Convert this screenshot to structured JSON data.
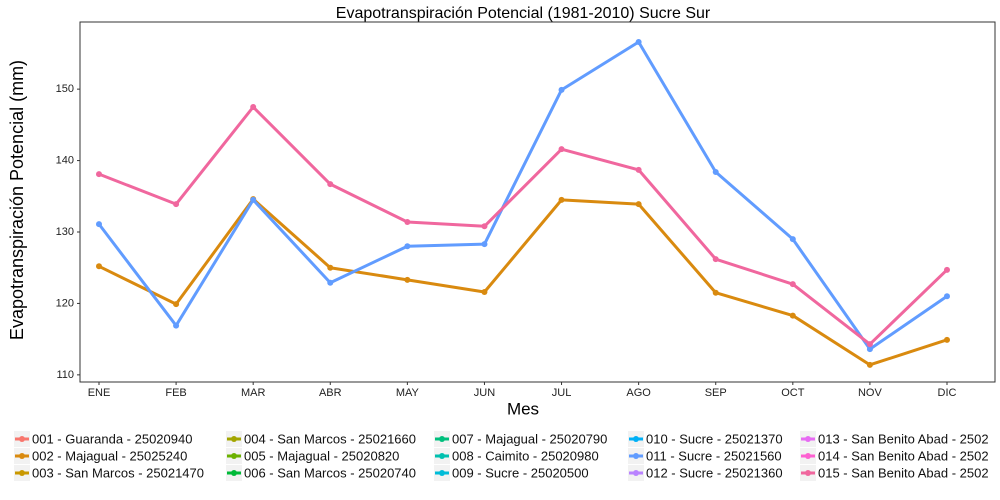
{
  "chart_data": {
    "type": "line",
    "title": "Evapotranspiración Potencial (1981-2010)  Sucre Sur",
    "x_label": "Mes",
    "y_label": "Evapotranspiración Potencial  (mm)",
    "categories": [
      "ENE",
      "FEB",
      "MAR",
      "ABR",
      "MAY",
      "JUN",
      "JUL",
      "AGO",
      "SEP",
      "OCT",
      "NOV",
      "DIC"
    ],
    "ylim": [
      109.0,
      159.4
    ],
    "yticks": [
      110,
      120,
      130,
      140,
      150
    ],
    "grid": false,
    "legend": "bottom",
    "series": [
      {
        "name": "001 - Guaranda - 25020940",
        "color": "#F8766D",
        "values": [
          null,
          null,
          null,
          null,
          null,
          null,
          null,
          null,
          null,
          null,
          null,
          null
        ]
      },
      {
        "name": "002 - Majagual - 25025240",
        "color": "#D98A0F",
        "values": [
          125.2,
          119.9,
          134.6,
          125.0,
          123.3,
          121.6,
          134.5,
          133.9,
          121.5,
          118.3,
          111.4,
          114.9
        ]
      },
      {
        "name": "003 - San Marcos - 25021470",
        "color": "#C99800",
        "values": [
          null,
          null,
          null,
          null,
          null,
          null,
          null,
          null,
          null,
          null,
          null,
          null
        ]
      },
      {
        "name": "004 - San Marcos - 25021660",
        "color": "#A3A500",
        "values": [
          null,
          null,
          null,
          null,
          null,
          null,
          null,
          null,
          null,
          null,
          null,
          null
        ]
      },
      {
        "name": "005 - Majagual - 25020820",
        "color": "#6BB100",
        "values": [
          null,
          null,
          null,
          null,
          null,
          null,
          null,
          null,
          null,
          null,
          null,
          null
        ]
      },
      {
        "name": "006 - San Marcos - 25020740",
        "color": "#00BA38",
        "values": [
          null,
          null,
          null,
          null,
          null,
          null,
          null,
          null,
          null,
          null,
          null,
          null
        ]
      },
      {
        "name": "007 - Majagual - 25020790",
        "color": "#00BF7D",
        "values": [
          null,
          null,
          null,
          null,
          null,
          null,
          null,
          null,
          null,
          null,
          null,
          null
        ]
      },
      {
        "name": "008 - Caimito - 25020980",
        "color": "#00C0AF",
        "values": [
          null,
          null,
          null,
          null,
          null,
          null,
          null,
          null,
          null,
          null,
          null,
          null
        ]
      },
      {
        "name": "009 - Sucre - 25020500",
        "color": "#00BCD8",
        "values": [
          null,
          null,
          null,
          null,
          null,
          null,
          null,
          null,
          null,
          null,
          null,
          null
        ]
      },
      {
        "name": "010 - Sucre - 25021370",
        "color": "#00B0F6",
        "values": [
          null,
          null,
          null,
          null,
          null,
          null,
          null,
          null,
          null,
          null,
          null,
          null
        ]
      },
      {
        "name": "011 - Sucre - 25021560",
        "color": "#619CFF",
        "values": [
          131.1,
          116.9,
          134.5,
          122.9,
          128.0,
          128.3,
          149.9,
          156.6,
          138.4,
          129.0,
          113.6,
          121.0
        ]
      },
      {
        "name": "012 - Sucre - 25021360",
        "color": "#B983FF",
        "values": [
          null,
          null,
          null,
          null,
          null,
          null,
          null,
          null,
          null,
          null,
          null,
          null
        ]
      },
      {
        "name": "013 - San Benito Abad - 2502",
        "color": "#E76BF3",
        "values": [
          null,
          null,
          null,
          null,
          null,
          null,
          null,
          null,
          null,
          null,
          null,
          null
        ]
      },
      {
        "name": "014 - San Benito Abad - 2502",
        "color": "#FD61D1",
        "values": [
          null,
          null,
          null,
          null,
          null,
          null,
          null,
          null,
          null,
          null,
          null,
          null
        ]
      },
      {
        "name": "015 - San Benito Abad - 2502",
        "color": "#F0679E",
        "values": [
          138.1,
          133.9,
          147.5,
          136.7,
          131.4,
          130.8,
          141.6,
          138.7,
          126.2,
          122.7,
          114.3,
          124.7
        ]
      }
    ]
  }
}
